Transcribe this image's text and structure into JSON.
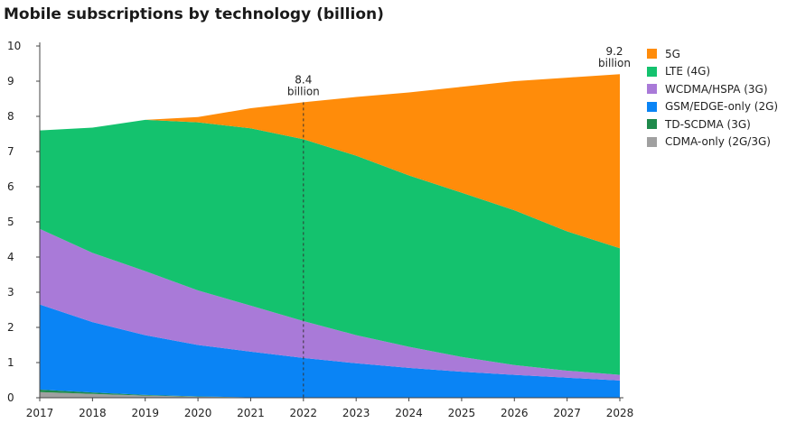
{
  "chart_data": {
    "type": "area",
    "title": "Mobile subscriptions by technology (billion)",
    "x": [
      2017,
      2018,
      2019,
      2020,
      2021,
      2022,
      2023,
      2024,
      2025,
      2026,
      2027,
      2028
    ],
    "ylim": [
      0,
      10
    ],
    "yticks": [
      0,
      1,
      2,
      3,
      4,
      5,
      6,
      7,
      8,
      9,
      10
    ],
    "stacked": true,
    "series": [
      {
        "name": "CDMA-only (2G/3G)",
        "color": "#a0a0a0",
        "values": [
          0.16,
          0.11,
          0.06,
          0.03,
          0.01,
          0.0,
          0.0,
          0.0,
          0.0,
          0.0,
          0.0,
          0.0
        ]
      },
      {
        "name": "TD-SCDMA (3G)",
        "color": "#1f8a4c",
        "values": [
          0.07,
          0.04,
          0.02,
          0.01,
          0.0,
          0.0,
          0.0,
          0.0,
          0.0,
          0.0,
          0.0,
          0.0
        ]
      },
      {
        "name": "GSM/EDGE-only (2G)",
        "color": "#0a84f5",
        "values": [
          2.42,
          2.0,
          1.7,
          1.46,
          1.3,
          1.13,
          0.98,
          0.85,
          0.74,
          0.65,
          0.57,
          0.49
        ]
      },
      {
        "name": "WCDMA/HSPA (3G)",
        "color": "#a97ad8",
        "values": [
          2.15,
          1.97,
          1.82,
          1.55,
          1.31,
          1.05,
          0.8,
          0.6,
          0.42,
          0.28,
          0.2,
          0.16
        ]
      },
      {
        "name": "LTE (4G)",
        "color": "#14c26e",
        "values": [
          2.8,
          3.56,
          4.3,
          4.78,
          5.04,
          5.17,
          5.1,
          4.87,
          4.67,
          4.4,
          3.96,
          3.6
        ]
      },
      {
        "name": "5G",
        "color": "#ff8c0a",
        "values": [
          0.0,
          0.0,
          0.0,
          0.15,
          0.57,
          1.05,
          1.67,
          2.36,
          3.01,
          3.67,
          4.37,
          4.95
        ]
      }
    ],
    "annotations": [
      {
        "x": 2022,
        "line1": "8.4",
        "line2": "billion"
      },
      {
        "x": 2028,
        "line1": "9.2",
        "line2": "billion"
      }
    ],
    "legend_order": [
      "5G",
      "LTE (4G)",
      "WCDMA/HSPA (3G)",
      "GSM/EDGE-only (2G)",
      "TD-SCDMA (3G)",
      "CDMA-only (2G/3G)"
    ],
    "legend_position": "right",
    "grid": false
  }
}
